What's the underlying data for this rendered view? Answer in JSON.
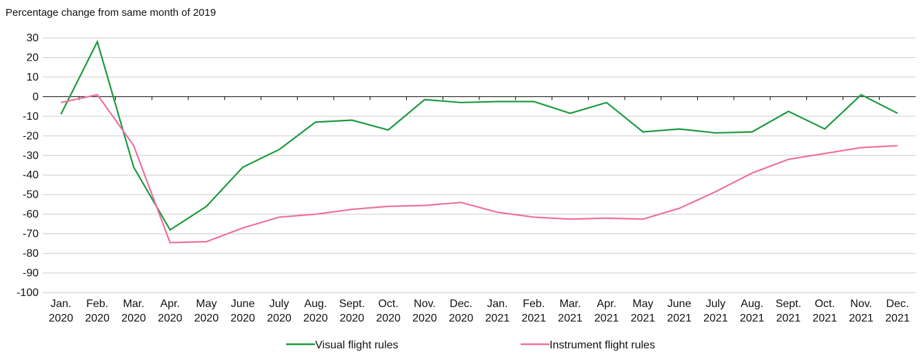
{
  "chart_data": {
    "type": "line",
    "y_axis_label": "Percentage change from same month of 2019",
    "categories": [
      [
        "Jan.",
        "2020"
      ],
      [
        "Feb.",
        "2020"
      ],
      [
        "Mar.",
        "2020"
      ],
      [
        "Apr.",
        "2020"
      ],
      [
        "May",
        "2020"
      ],
      [
        "June",
        "2020"
      ],
      [
        "July",
        "2020"
      ],
      [
        "Aug.",
        "2020"
      ],
      [
        "Sept.",
        "2020"
      ],
      [
        "Oct.",
        "2020"
      ],
      [
        "Nov.",
        "2020"
      ],
      [
        "Dec.",
        "2020"
      ],
      [
        "Jan.",
        "2021"
      ],
      [
        "Feb.",
        "2021"
      ],
      [
        "Mar.",
        "2021"
      ],
      [
        "Apr.",
        "2021"
      ],
      [
        "May",
        "2021"
      ],
      [
        "June",
        "2021"
      ],
      [
        "July",
        "2021"
      ],
      [
        "Aug.",
        "2021"
      ],
      [
        "Sept.",
        "2021"
      ],
      [
        "Oct.",
        "2021"
      ],
      [
        "Nov.",
        "2021"
      ],
      [
        "Dec.",
        "2021"
      ]
    ],
    "series": [
      {
        "name": "Visual flight rules",
        "color": "#1a9a3c",
        "values": [
          -9,
          28,
          -36,
          -68,
          -56,
          -36,
          -27,
          -13,
          -12,
          -17,
          -1.5,
          -3,
          -2.5,
          -2.5,
          -8.5,
          -3,
          -18,
          -16.5,
          -18.5,
          -18,
          -7.5,
          -16.5,
          1,
          -8.5
        ]
      },
      {
        "name": "Instrument flight rules",
        "color": "#ee6fa0",
        "values": [
          -3,
          1,
          -25,
          -74.5,
          -74,
          -67,
          -61.5,
          -60,
          -57.5,
          -56,
          -55.5,
          -54,
          -59,
          -61.5,
          -62.5,
          -62,
          -62.5,
          -57,
          -48.5,
          -39,
          -32,
          -29,
          -26,
          -25
        ]
      }
    ],
    "ylim": [
      -100,
      30
    ],
    "yticks": [
      30,
      20,
      10,
      0,
      -10,
      -20,
      -30,
      -40,
      -50,
      -60,
      -70,
      -80,
      -90,
      -100
    ],
    "grid": true
  }
}
